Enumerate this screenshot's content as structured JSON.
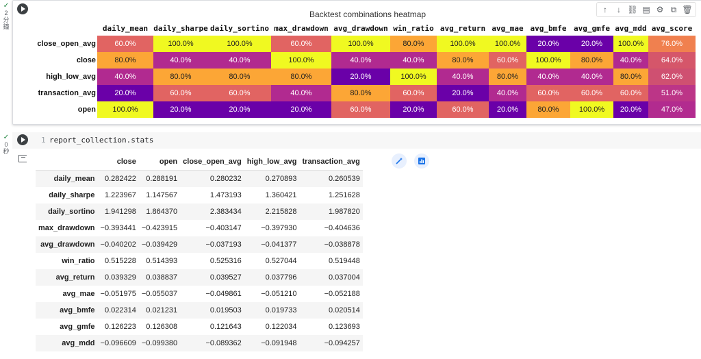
{
  "cell1": {
    "exec_check": "✓",
    "exec_time_lines": [
      "2",
      "分",
      "鐘"
    ],
    "toolbar_icons": [
      "arrow-up-icon",
      "arrow-down-icon",
      "link-icon",
      "comment-icon",
      "settings-icon",
      "copy-icon",
      "delete-icon"
    ]
  },
  "heatmap": {
    "title": "Backtest combinations heatmap",
    "columns": [
      "daily_mean",
      "daily_sharpe",
      "daily_sortino",
      "max_drawdown",
      "avg_drawdown",
      "win_ratio",
      "avg_return",
      "avg_mae",
      "avg_bmfe",
      "avg_gmfe",
      "avg_mdd",
      "avg_score"
    ],
    "rows": [
      {
        "label": "close_open_avg",
        "values": [
          "60.0%",
          "100.0%",
          "100.0%",
          "60.0%",
          "100.0%",
          "80.0%",
          "100.0%",
          "100.0%",
          "20.0%",
          "20.0%",
          "100.0%",
          "76.0%"
        ]
      },
      {
        "label": "close",
        "values": [
          "80.0%",
          "40.0%",
          "40.0%",
          "100.0%",
          "40.0%",
          "40.0%",
          "80.0%",
          "60.0%",
          "100.0%",
          "80.0%",
          "40.0%",
          "64.0%"
        ]
      },
      {
        "label": "high_low_avg",
        "values": [
          "40.0%",
          "80.0%",
          "80.0%",
          "80.0%",
          "20.0%",
          "100.0%",
          "40.0%",
          "80.0%",
          "40.0%",
          "40.0%",
          "80.0%",
          "62.0%"
        ]
      },
      {
        "label": "transaction_avg",
        "values": [
          "20.0%",
          "60.0%",
          "60.0%",
          "40.0%",
          "80.0%",
          "60.0%",
          "20.0%",
          "40.0%",
          "60.0%",
          "60.0%",
          "60.0%",
          "51.0%"
        ]
      },
      {
        "label": "open",
        "values": [
          "100.0%",
          "20.0%",
          "20.0%",
          "20.0%",
          "60.0%",
          "20.0%",
          "60.0%",
          "20.0%",
          "80.0%",
          "100.0%",
          "20.0%",
          "47.0%"
        ]
      }
    ],
    "colors": {
      "20.0%": "#6a00a8",
      "40.0%": "#b12a90",
      "60.0%": "#e16462",
      "80.0%": "#fca636",
      "100.0%": "#f0f921",
      "76.0%": "#f0804f",
      "64.0%": "#d5566a",
      "62.0%": "#cf5071",
      "51.0%": "#bc3587",
      "47.0%": "#b22b8f"
    }
  },
  "cell2": {
    "exec_check": "✓",
    "exec_time_lines": [
      "0",
      "秒"
    ],
    "line_number": "1",
    "code": "report_collection.stats",
    "action_icons": [
      "magic-wand-icon",
      "chart-icon"
    ]
  },
  "stats": {
    "columns": [
      "",
      "close",
      "open",
      "close_open_avg",
      "high_low_avg",
      "transaction_avg"
    ],
    "rows": [
      {
        "label": "daily_mean",
        "values": [
          "0.282422",
          "0.288191",
          "0.280232",
          "0.270893",
          "0.260539"
        ]
      },
      {
        "label": "daily_sharpe",
        "values": [
          "1.223967",
          "1.147567",
          "1.473193",
          "1.360421",
          "1.251628"
        ]
      },
      {
        "label": "daily_sortino",
        "values": [
          "1.941298",
          "1.864370",
          "2.383434",
          "2.215828",
          "1.987820"
        ]
      },
      {
        "label": "max_drawdown",
        "values": [
          "−0.393441",
          "−0.423915",
          "−0.403147",
          "−0.397930",
          "−0.404636"
        ]
      },
      {
        "label": "avg_drawdown",
        "values": [
          "−0.040202",
          "−0.039429",
          "−0.037193",
          "−0.041377",
          "−0.038878"
        ]
      },
      {
        "label": "win_ratio",
        "values": [
          "0.515228",
          "0.514393",
          "0.525316",
          "0.527044",
          "0.519448"
        ]
      },
      {
        "label": "avg_return",
        "values": [
          "0.039329",
          "0.038837",
          "0.039527",
          "0.037796",
          "0.037004"
        ]
      },
      {
        "label": "avg_mae",
        "values": [
          "−0.051975",
          "−0.055037",
          "−0.049861",
          "−0.051210",
          "−0.052188"
        ]
      },
      {
        "label": "avg_bmfe",
        "values": [
          "0.022314",
          "0.021231",
          "0.019503",
          "0.019733",
          "0.020514"
        ]
      },
      {
        "label": "avg_gmfe",
        "values": [
          "0.126223",
          "0.126308",
          "0.121643",
          "0.122034",
          "0.123693"
        ]
      },
      {
        "label": "avg_mdd",
        "values": [
          "−0.096609",
          "−0.099380",
          "−0.089362",
          "−0.091948",
          "−0.094257"
        ]
      }
    ]
  }
}
